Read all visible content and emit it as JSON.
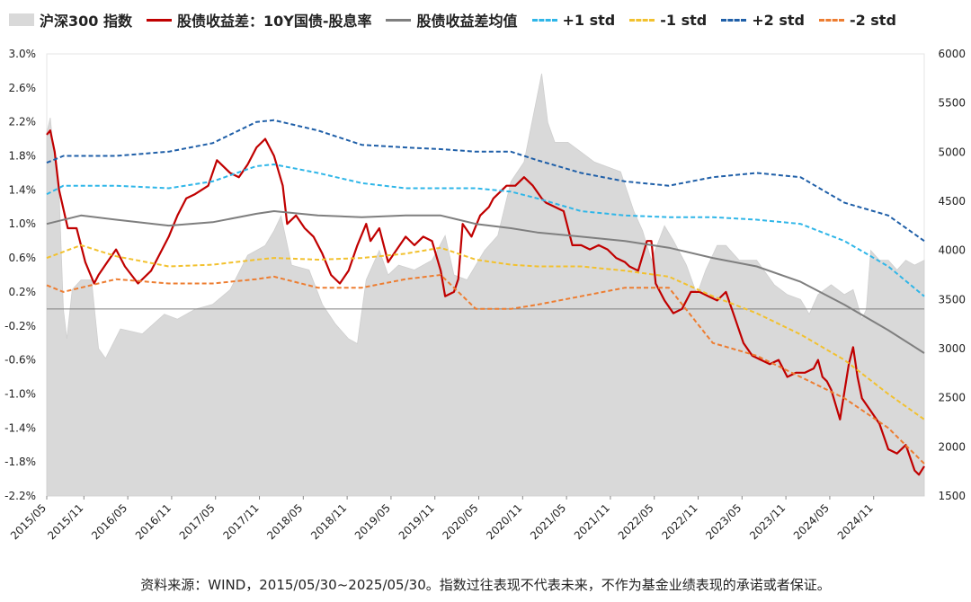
{
  "legend": [
    {
      "label": "沪深300 指数",
      "type": "area",
      "color": "#d9d9d9"
    },
    {
      "label": "股债收益差：10Y国债-股息率",
      "type": "line",
      "color": "#c00000"
    },
    {
      "label": "股债收益差均值",
      "type": "line",
      "color": "#7f7f7f"
    },
    {
      "label": "+1 std",
      "type": "dash",
      "color": "#2fb6e8"
    },
    {
      "label": "-1 std",
      "type": "dash",
      "color": "#f2c12e"
    },
    {
      "label": "+2 std",
      "type": "dash",
      "color": "#1f5fa8"
    },
    {
      "label": "-2 std",
      "type": "dash",
      "color": "#ed7d31"
    }
  ],
  "source_note": "资料来源：WIND，2015/05/30~2025/05/30。指数过往表现不代表未来，不作为基金业绩表现的承诺或者保证。",
  "chart_data": {
    "type": "line",
    "x_tick_labels": [
      "2015/05",
      "2015/11",
      "2016/05",
      "2016/11",
      "2017/05",
      "2017/11",
      "2018/05",
      "2018/11",
      "2019/05",
      "2019/11",
      "2020/05",
      "2020/11",
      "2021/05",
      "2021/11",
      "2022/05",
      "2022/11",
      "2023/05",
      "2023/11",
      "2024/05",
      "2024/11"
    ],
    "x_range": [
      2015.41,
      2025.41
    ],
    "y_left": {
      "ticks": [
        "3.0%",
        "2.6%",
        "2.2%",
        "1.8%",
        "1.4%",
        "1.0%",
        "0.6%",
        "0.2%",
        "-0.2%",
        "-0.6%",
        "-1.0%",
        "-1.4%",
        "-1.8%",
        "-2.2%"
      ],
      "range": [
        -2.2,
        3.0
      ],
      "unit": "%"
    },
    "y_right": {
      "ticks": [
        "6000",
        "5500",
        "5000",
        "4500",
        "4000",
        "3500",
        "3000",
        "2500",
        "2000",
        "1500"
      ],
      "range": [
        1500,
        6000
      ]
    },
    "series": [
      {
        "name": "沪深300 指数",
        "axis": "right",
        "kind": "area",
        "color": "#d9d9d9",
        "x": [
          2015.41,
          2015.45,
          2015.5,
          2015.55,
          2015.6,
          2015.64,
          2015.7,
          2015.8,
          2015.92,
          2016.0,
          2016.08,
          2016.25,
          2016.5,
          2016.75,
          2016.9,
          2017.1,
          2017.3,
          2017.5,
          2017.7,
          2017.9,
          2018.0,
          2018.08,
          2018.2,
          2018.4,
          2018.55,
          2018.7,
          2018.85,
          2018.95,
          2019.05,
          2019.2,
          2019.3,
          2019.42,
          2019.6,
          2019.8,
          2019.95,
          2020.05,
          2020.2,
          2020.4,
          2020.55,
          2020.7,
          2020.85,
          2020.95,
          2021.05,
          2021.12,
          2021.2,
          2021.35,
          2021.5,
          2021.65,
          2021.8,
          2021.95,
          2022.1,
          2022.2,
          2022.3,
          2022.45,
          2022.55,
          2022.7,
          2022.82,
          2022.92,
          2023.05,
          2023.15,
          2023.3,
          2023.5,
          2023.7,
          2023.85,
          2024.0,
          2024.1,
          2024.2,
          2024.35,
          2024.5,
          2024.6,
          2024.7,
          2024.75,
          2024.8,
          2024.9,
          2025.0,
          2025.1,
          2025.2,
          2025.3,
          2025.41
        ],
        "values": [
          5200,
          5350,
          4900,
          4600,
          3400,
          3100,
          3600,
          3700,
          3700,
          3000,
          2900,
          3200,
          3150,
          3350,
          3300,
          3400,
          3450,
          3600,
          3950,
          4050,
          4200,
          4350,
          3850,
          3800,
          3450,
          3250,
          3100,
          3050,
          3700,
          4000,
          3750,
          3850,
          3800,
          3900,
          4150,
          3750,
          3700,
          4000,
          4150,
          4700,
          4900,
          5350,
          5800,
          5300,
          5100,
          5100,
          5000,
          4900,
          4850,
          4800,
          4400,
          4200,
          3900,
          4250,
          4100,
          3850,
          3550,
          3800,
          4050,
          4050,
          3900,
          3900,
          3650,
          3550,
          3500,
          3350,
          3550,
          3650,
          3550,
          3600,
          3300,
          3400,
          4000,
          3900,
          3900,
          3800,
          3900,
          3850,
          3900
        ]
      },
      {
        "name": "股债收益差：10Y国债-股息率",
        "axis": "left",
        "kind": "line",
        "color": "#c00000",
        "x": [
          2015.41,
          2015.45,
          2015.5,
          2015.55,
          2015.65,
          2015.75,
          2015.85,
          2015.95,
          2016.0,
          2016.1,
          2016.2,
          2016.3,
          2016.45,
          2016.6,
          2016.8,
          2016.9,
          2017.0,
          2017.1,
          2017.25,
          2017.35,
          2017.5,
          2017.6,
          2017.7,
          2017.8,
          2017.9,
          2018.0,
          2018.1,
          2018.15,
          2018.25,
          2018.35,
          2018.45,
          2018.55,
          2018.65,
          2018.75,
          2018.85,
          2018.95,
          2019.05,
          2019.1,
          2019.2,
          2019.3,
          2019.4,
          2019.5,
          2019.6,
          2019.7,
          2019.8,
          2019.9,
          2019.95,
          2020.05,
          2020.1,
          2020.15,
          2020.25,
          2020.35,
          2020.45,
          2020.5,
          2020.55,
          2020.65,
          2020.75,
          2020.85,
          2020.95,
          2021.05,
          2021.1,
          2021.2,
          2021.3,
          2021.4,
          2021.5,
          2021.6,
          2021.7,
          2021.8,
          2021.9,
          2022.0,
          2022.05,
          2022.15,
          2022.25,
          2022.3,
          2022.35,
          2022.45,
          2022.55,
          2022.65,
          2022.75,
          2022.85,
          2022.95,
          2023.05,
          2023.15,
          2023.25,
          2023.35,
          2023.45,
          2023.55,
          2023.65,
          2023.75,
          2023.85,
          2023.95,
          2024.05,
          2024.15,
          2024.2,
          2024.25,
          2024.3,
          2024.35,
          2024.45,
          2024.55,
          2024.6,
          2024.65,
          2024.7,
          2024.8,
          2024.9,
          2025.0,
          2025.1,
          2025.2,
          2025.3,
          2025.35,
          2025.41
        ],
        "values": [
          2.05,
          2.1,
          1.85,
          1.4,
          0.95,
          0.95,
          0.55,
          0.3,
          0.4,
          0.55,
          0.7,
          0.5,
          0.3,
          0.45,
          0.85,
          1.1,
          1.3,
          1.35,
          1.45,
          1.75,
          1.6,
          1.55,
          1.7,
          1.9,
          2.0,
          1.8,
          1.45,
          1.0,
          1.1,
          0.95,
          0.85,
          0.65,
          0.4,
          0.3,
          0.45,
          0.75,
          1.0,
          0.8,
          0.95,
          0.55,
          0.7,
          0.85,
          0.75,
          0.85,
          0.8,
          0.45,
          0.15,
          0.2,
          0.35,
          1.0,
          0.85,
          1.1,
          1.2,
          1.3,
          1.35,
          1.45,
          1.45,
          1.55,
          1.45,
          1.3,
          1.25,
          1.2,
          1.15,
          0.75,
          0.75,
          0.7,
          0.75,
          0.7,
          0.6,
          0.55,
          0.5,
          0.45,
          0.8,
          0.8,
          0.3,
          0.1,
          -0.05,
          0.0,
          0.2,
          0.2,
          0.15,
          0.1,
          0.2,
          -0.1,
          -0.4,
          -0.55,
          -0.6,
          -0.65,
          -0.6,
          -0.8,
          -0.75,
          -0.75,
          -0.7,
          -0.6,
          -0.8,
          -0.85,
          -0.95,
          -1.3,
          -0.65,
          -0.45,
          -0.8,
          -1.05,
          -1.2,
          -1.35,
          -1.65,
          -1.7,
          -1.6,
          -1.9,
          -1.95,
          -1.85
        ]
      },
      {
        "name": "股债收益差均值",
        "axis": "left",
        "kind": "line",
        "color": "#7f7f7f",
        "x": [
          2015.41,
          2015.8,
          2016.2,
          2016.8,
          2017.3,
          2017.8,
          2018.0,
          2018.5,
          2019.0,
          2019.5,
          2019.9,
          2020.3,
          2020.7,
          2021.0,
          2021.5,
          2022.0,
          2022.5,
          2023.0,
          2023.5,
          2024.0,
          2024.5,
          2025.0,
          2025.41
        ],
        "values": [
          1.0,
          1.1,
          1.05,
          0.98,
          1.02,
          1.12,
          1.15,
          1.1,
          1.08,
          1.1,
          1.1,
          1.0,
          0.95,
          0.9,
          0.85,
          0.8,
          0.72,
          0.6,
          0.5,
          0.32,
          0.05,
          -0.25,
          -0.52
        ]
      },
      {
        "name": "+1 std",
        "axis": "left",
        "kind": "dash",
        "color": "#2fb6e8",
        "x": [
          2015.41,
          2015.6,
          2016.2,
          2016.8,
          2017.3,
          2017.8,
          2018.0,
          2018.5,
          2019.0,
          2019.5,
          2019.9,
          2020.3,
          2020.7,
          2021.0,
          2021.5,
          2022.0,
          2022.5,
          2023.0,
          2023.5,
          2024.0,
          2024.5,
          2025.0,
          2025.41
        ],
        "values": [
          1.35,
          1.45,
          1.45,
          1.42,
          1.5,
          1.68,
          1.7,
          1.6,
          1.48,
          1.42,
          1.42,
          1.42,
          1.38,
          1.3,
          1.15,
          1.1,
          1.08,
          1.08,
          1.05,
          1.0,
          0.8,
          0.5,
          0.15
        ]
      },
      {
        "name": "-1 std",
        "axis": "left",
        "kind": "dash",
        "color": "#f2c12e",
        "x": [
          2015.41,
          2015.8,
          2016.2,
          2016.8,
          2017.3,
          2017.8,
          2018.0,
          2018.5,
          2019.0,
          2019.5,
          2019.9,
          2020.3,
          2020.7,
          2021.0,
          2021.5,
          2022.0,
          2022.5,
          2023.0,
          2023.5,
          2024.0,
          2024.5,
          2025.0,
          2025.41
        ],
        "values": [
          0.6,
          0.75,
          0.62,
          0.5,
          0.52,
          0.58,
          0.6,
          0.58,
          0.6,
          0.65,
          0.72,
          0.58,
          0.52,
          0.5,
          0.5,
          0.45,
          0.38,
          0.15,
          -0.05,
          -0.3,
          -0.6,
          -1.0,
          -1.3
        ]
      },
      {
        "name": "+2 std",
        "axis": "left",
        "kind": "dash",
        "color": "#1f5fa8",
        "x": [
          2015.41,
          2015.6,
          2016.2,
          2016.8,
          2017.3,
          2017.8,
          2018.0,
          2018.5,
          2019.0,
          2019.5,
          2019.9,
          2020.3,
          2020.7,
          2021.0,
          2021.5,
          2022.0,
          2022.5,
          2023.0,
          2023.5,
          2024.0,
          2024.5,
          2025.0,
          2025.41
        ],
        "values": [
          1.72,
          1.8,
          1.8,
          1.85,
          1.95,
          2.2,
          2.22,
          2.1,
          1.93,
          1.9,
          1.88,
          1.85,
          1.85,
          1.75,
          1.6,
          1.5,
          1.45,
          1.55,
          1.6,
          1.55,
          1.25,
          1.1,
          0.8
        ]
      },
      {
        "name": "-2 std",
        "axis": "left",
        "kind": "dash",
        "color": "#ed7d31",
        "x": [
          2015.41,
          2015.6,
          2016.2,
          2016.8,
          2017.3,
          2017.8,
          2018.0,
          2018.5,
          2019.0,
          2019.5,
          2019.9,
          2020.3,
          2020.7,
          2021.0,
          2021.5,
          2022.0,
          2022.5,
          2023.0,
          2023.5,
          2024.0,
          2024.5,
          2025.0,
          2025.41
        ],
        "values": [
          0.28,
          0.2,
          0.35,
          0.3,
          0.3,
          0.35,
          0.38,
          0.25,
          0.25,
          0.35,
          0.4,
          0.0,
          0.0,
          0.05,
          0.15,
          0.25,
          0.25,
          -0.4,
          -0.55,
          -0.8,
          -1.05,
          -1.4,
          -1.82
        ]
      }
    ]
  }
}
